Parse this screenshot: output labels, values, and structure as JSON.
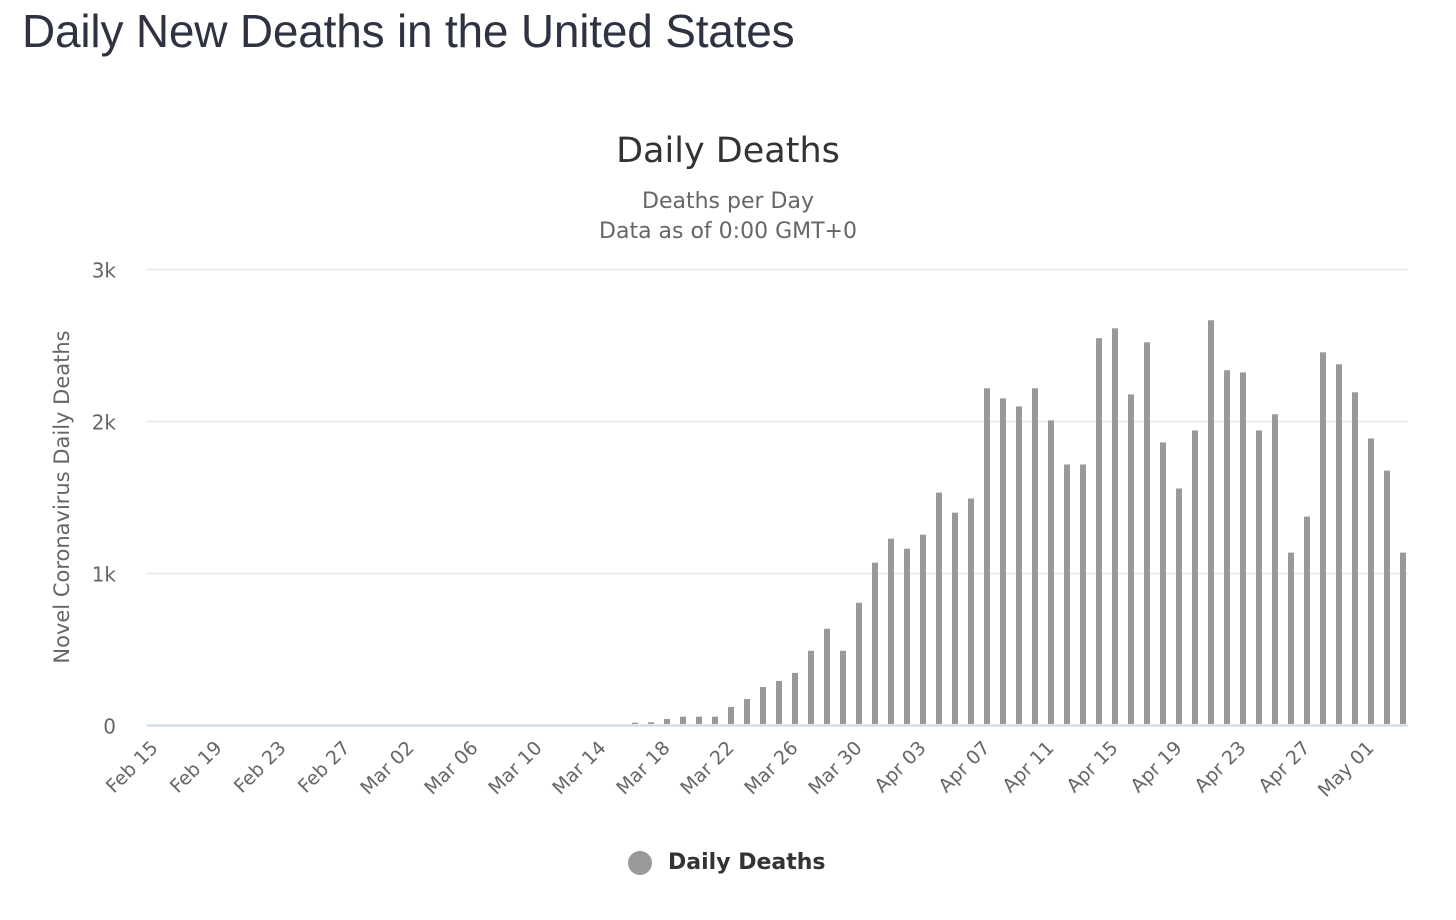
{
  "page": {
    "title": "Daily New Deaths in the United States"
  },
  "chart_data": {
    "type": "bar",
    "title": "Daily Deaths",
    "subtitle_lines": [
      "Deaths per Day",
      "Data as of 0:00 GMT+0"
    ],
    "xlabel": "",
    "ylabel": "Novel Coronavirus Daily Deaths",
    "ylim": [
      0,
      3000
    ],
    "yticks": [
      0,
      1000,
      2000,
      3000
    ],
    "ytick_labels": [
      "0",
      "1k",
      "2k",
      "3k"
    ],
    "grid": true,
    "bar_color": "#999999",
    "legend": {
      "position": "bottom-center",
      "entries": [
        {
          "label": "Daily Deaths",
          "color": "#999999"
        }
      ]
    },
    "xtick_labels": [
      "Feb 15",
      "Feb 19",
      "Feb 23",
      "Feb 27",
      "Mar 02",
      "Mar 06",
      "Mar 10",
      "Mar 14",
      "Mar 18",
      "Mar 22",
      "Mar 26",
      "Mar 30",
      "Apr 03",
      "Apr 07",
      "Apr 11",
      "Apr 15",
      "Apr 19",
      "Apr 23",
      "Apr 27",
      "May 01"
    ],
    "xtick_every": 4,
    "categories": [
      "Feb 15",
      "Feb 16",
      "Feb 17",
      "Feb 18",
      "Feb 19",
      "Feb 20",
      "Feb 21",
      "Feb 22",
      "Feb 23",
      "Feb 24",
      "Feb 25",
      "Feb 26",
      "Feb 27",
      "Feb 28",
      "Feb 29",
      "Mar 01",
      "Mar 02",
      "Mar 03",
      "Mar 04",
      "Mar 05",
      "Mar 06",
      "Mar 07",
      "Mar 08",
      "Mar 09",
      "Mar 10",
      "Mar 11",
      "Mar 12",
      "Mar 13",
      "Mar 14",
      "Mar 15",
      "Mar 16",
      "Mar 17",
      "Mar 18",
      "Mar 19",
      "Mar 20",
      "Mar 21",
      "Mar 22",
      "Mar 23",
      "Mar 24",
      "Mar 25",
      "Mar 26",
      "Mar 27",
      "Mar 28",
      "Mar 29",
      "Mar 30",
      "Mar 31",
      "Apr 01",
      "Apr 02",
      "Apr 03",
      "Apr 04",
      "Apr 05",
      "Apr 06",
      "Apr 07",
      "Apr 08",
      "Apr 09",
      "Apr 10",
      "Apr 11",
      "Apr 12",
      "Apr 13",
      "Apr 14",
      "Apr 15",
      "Apr 16",
      "Apr 17",
      "Apr 18",
      "Apr 19",
      "Apr 20",
      "Apr 21",
      "Apr 22",
      "Apr 23",
      "Apr 24",
      "Apr 25",
      "Apr 26",
      "Apr 27",
      "Apr 28",
      "Apr 29",
      "Apr 30",
      "May 01",
      "May 02",
      "May 03"
    ],
    "series": [
      {
        "name": "Daily Deaths",
        "values": [
          0,
          0,
          0,
          0,
          0,
          0,
          0,
          0,
          0,
          0,
          0,
          0,
          0,
          0,
          0,
          0,
          0,
          0,
          0,
          0,
          0,
          0,
          0,
          0,
          0,
          0,
          0,
          0,
          0,
          0,
          15,
          18,
          40,
          55,
          55,
          55,
          119,
          171,
          250,
          290,
          343,
          488,
          633,
          488,
          804,
          1068,
          1226,
          1160,
          1252,
          1529,
          1397,
          1490,
          2215,
          2149,
          2096,
          2215,
          2004,
          1714,
          1714,
          2545,
          2610,
          2175,
          2518,
          1859,
          1556,
          1938,
          2663,
          2334,
          2320,
          1938,
          2044,
          1134,
          1371,
          2452,
          2373,
          2189,
          1885,
          1674,
          1134
        ]
      }
    ]
  }
}
